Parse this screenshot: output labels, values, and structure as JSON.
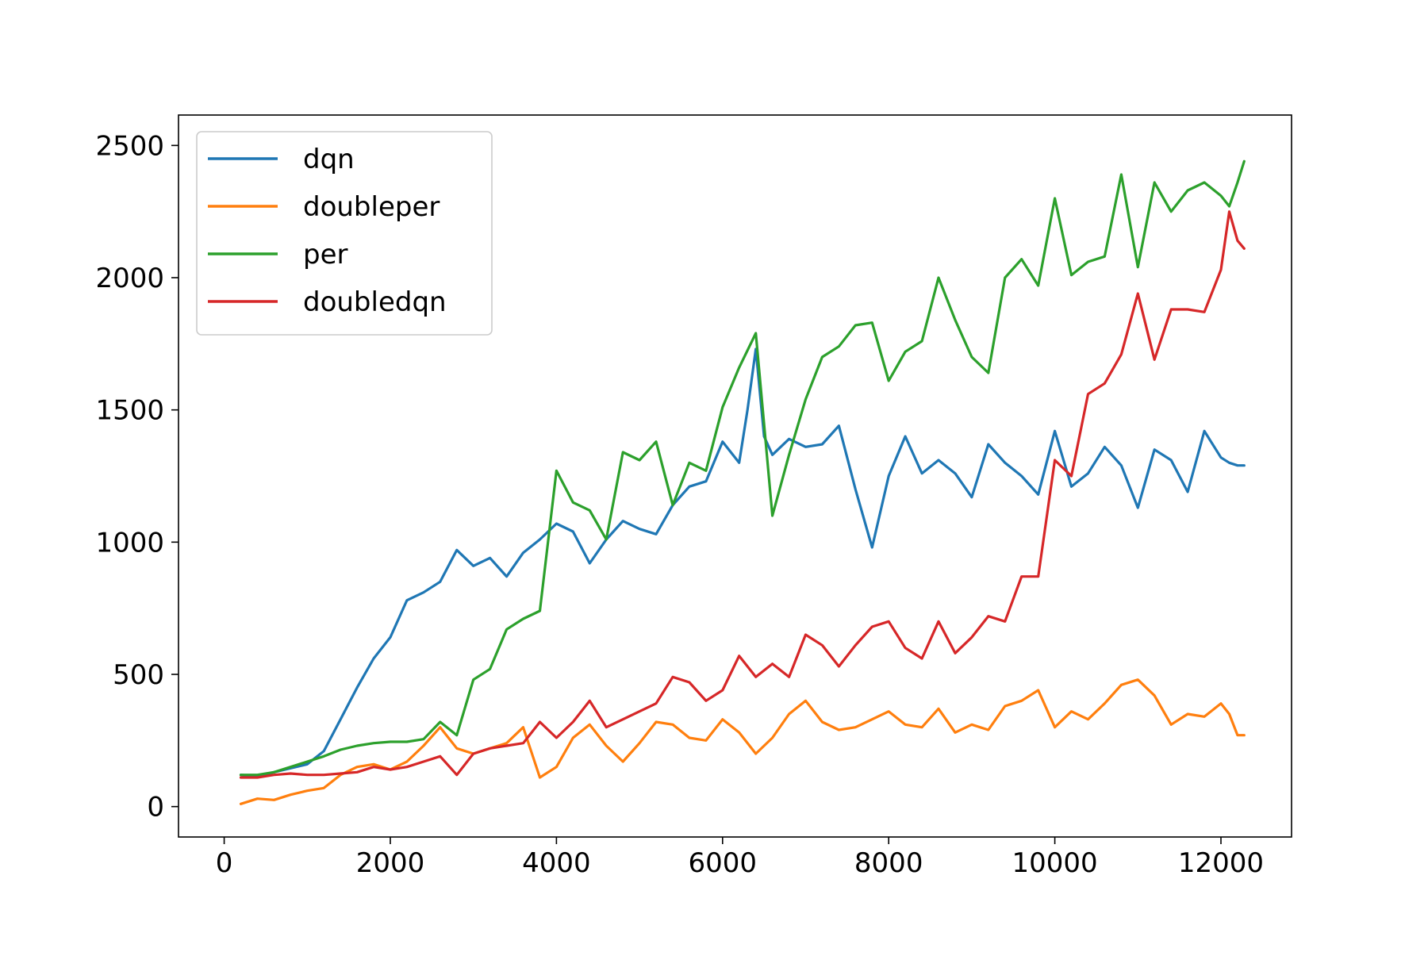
{
  "chart_data": {
    "type": "line",
    "title": "",
    "xlabel": "",
    "ylabel": "",
    "xlim": [
      -550,
      12850
    ],
    "ylim": [
      -115,
      2615
    ],
    "xticks": [
      0,
      2000,
      4000,
      6000,
      8000,
      10000,
      12000
    ],
    "yticks": [
      0,
      500,
      1000,
      1500,
      2000,
      2500
    ],
    "grid": false,
    "legend_position": "top-left",
    "series": [
      {
        "name": "dqn",
        "color": "#1f77b4",
        "x": [
          200,
          400,
          600,
          800,
          1000,
          1200,
          1400,
          1600,
          1800,
          2000,
          2200,
          2400,
          2600,
          2800,
          3000,
          3200,
          3400,
          3600,
          3800,
          4000,
          4200,
          4400,
          4600,
          4800,
          5000,
          5200,
          5400,
          5600,
          5800,
          6000,
          6200,
          6300,
          6400,
          6500,
          6600,
          6800,
          7000,
          7200,
          7400,
          7600,
          7800,
          8000,
          8200,
          8400,
          8600,
          8800,
          9000,
          9200,
          9400,
          9600,
          9800,
          10000,
          10200,
          10400,
          10600,
          10800,
          11000,
          11200,
          11400,
          11600,
          11800,
          12000,
          12100,
          12200,
          12280
        ],
        "y": [
          120,
          115,
          130,
          145,
          160,
          210,
          330,
          450,
          560,
          640,
          780,
          810,
          850,
          970,
          910,
          940,
          870,
          960,
          1010,
          1070,
          1040,
          920,
          1010,
          1080,
          1050,
          1030,
          1140,
          1210,
          1230,
          1380,
          1300,
          1500,
          1730,
          1400,
          1330,
          1390,
          1360,
          1370,
          1440,
          1200,
          980,
          1250,
          1400,
          1260,
          1310,
          1260,
          1170,
          1370,
          1300,
          1250,
          1180,
          1420,
          1210,
          1260,
          1360,
          1290,
          1130,
          1350,
          1310,
          1190,
          1420,
          1320,
          1300,
          1290,
          1290
        ]
      },
      {
        "name": "doubleper",
        "color": "#ff7f0e",
        "x": [
          200,
          400,
          600,
          800,
          1000,
          1200,
          1400,
          1600,
          1800,
          2000,
          2200,
          2400,
          2600,
          2800,
          3000,
          3200,
          3400,
          3600,
          3800,
          4000,
          4200,
          4400,
          4600,
          4800,
          5000,
          5200,
          5400,
          5600,
          5800,
          6000,
          6200,
          6400,
          6600,
          6800,
          7000,
          7200,
          7400,
          7600,
          7800,
          8000,
          8200,
          8400,
          8600,
          8800,
          9000,
          9200,
          9400,
          9600,
          9800,
          10000,
          10200,
          10400,
          10600,
          10800,
          11000,
          11200,
          11400,
          11600,
          11800,
          12000,
          12100,
          12200,
          12280
        ],
        "y": [
          10,
          30,
          25,
          45,
          60,
          70,
          120,
          150,
          160,
          140,
          170,
          230,
          300,
          220,
          200,
          220,
          240,
          300,
          110,
          150,
          260,
          310,
          230,
          170,
          240,
          320,
          310,
          260,
          250,
          330,
          280,
          200,
          260,
          350,
          400,
          320,
          290,
          300,
          330,
          360,
          310,
          300,
          370,
          280,
          310,
          290,
          380,
          400,
          440,
          300,
          360,
          330,
          390,
          460,
          480,
          420,
          310,
          350,
          340,
          390,
          350,
          270,
          270
        ]
      },
      {
        "name": "per",
        "color": "#2ca02c",
        "x": [
          200,
          400,
          600,
          800,
          1000,
          1200,
          1400,
          1600,
          1800,
          2000,
          2200,
          2400,
          2600,
          2800,
          3000,
          3200,
          3400,
          3600,
          3800,
          4000,
          4200,
          4400,
          4600,
          4800,
          5000,
          5200,
          5400,
          5600,
          5800,
          6000,
          6200,
          6400,
          6600,
          6800,
          7000,
          7200,
          7400,
          7600,
          7800,
          8000,
          8200,
          8400,
          8600,
          8800,
          9000,
          9200,
          9400,
          9600,
          9800,
          10000,
          10200,
          10400,
          10600,
          10800,
          11000,
          11200,
          11400,
          11600,
          11800,
          12000,
          12100,
          12200,
          12280
        ],
        "y": [
          120,
          120,
          130,
          150,
          170,
          190,
          215,
          230,
          240,
          245,
          245,
          255,
          320,
          270,
          480,
          520,
          670,
          710,
          740,
          1270,
          1150,
          1120,
          1010,
          1340,
          1310,
          1380,
          1140,
          1300,
          1270,
          1510,
          1660,
          1790,
          1100,
          1330,
          1540,
          1700,
          1740,
          1820,
          1830,
          1610,
          1720,
          1760,
          2000,
          1840,
          1700,
          1640,
          2000,
          2070,
          1970,
          2300,
          2010,
          2060,
          2080,
          2390,
          2040,
          2360,
          2250,
          2330,
          2360,
          2310,
          2270,
          2360,
          2440
        ]
      },
      {
        "name": "doubledqn",
        "color": "#d62728",
        "x": [
          200,
          400,
          600,
          800,
          1000,
          1200,
          1400,
          1600,
          1800,
          2000,
          2200,
          2400,
          2600,
          2800,
          3000,
          3200,
          3400,
          3600,
          3800,
          4000,
          4200,
          4400,
          4600,
          4800,
          5000,
          5200,
          5400,
          5600,
          5800,
          6000,
          6200,
          6400,
          6600,
          6800,
          7000,
          7200,
          7400,
          7600,
          7800,
          8000,
          8200,
          8400,
          8600,
          8800,
          9000,
          9200,
          9400,
          9600,
          9800,
          10000,
          10200,
          10400,
          10600,
          10800,
          11000,
          11200,
          11400,
          11600,
          11800,
          12000,
          12100,
          12200,
          12280
        ],
        "y": [
          110,
          110,
          120,
          125,
          120,
          120,
          125,
          130,
          150,
          140,
          150,
          170,
          190,
          120,
          200,
          220,
          230,
          240,
          320,
          260,
          320,
          400,
          300,
          330,
          360,
          390,
          490,
          470,
          400,
          440,
          570,
          490,
          540,
          490,
          650,
          610,
          530,
          610,
          680,
          700,
          600,
          560,
          700,
          580,
          640,
          720,
          700,
          870,
          870,
          1310,
          1250,
          1560,
          1600,
          1710,
          1940,
          1690,
          1880,
          1880,
          1870,
          2030,
          2250,
          2140,
          2110
        ]
      }
    ]
  }
}
